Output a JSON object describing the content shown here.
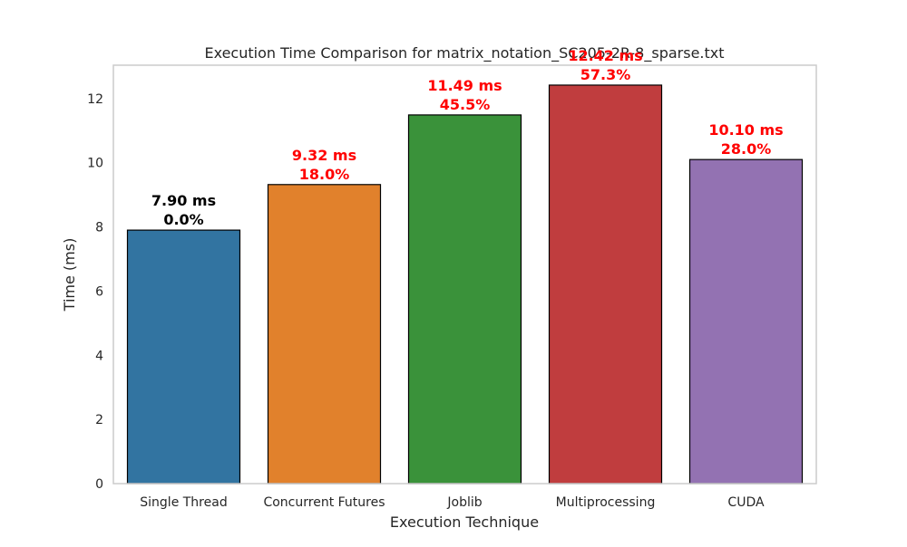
{
  "chart_data": {
    "type": "bar",
    "title": "Execution Time Comparison for matrix_notation_SC205-2R-8_sparse.txt",
    "xlabel": "Execution Technique",
    "ylabel": "Time (ms)",
    "categories": [
      "Single Thread",
      "Concurrent Futures",
      "Joblib",
      "Multiprocessing",
      "CUDA"
    ],
    "values": [
      7.9,
      9.32,
      11.49,
      12.42,
      10.1
    ],
    "value_labels": [
      "7.90 ms",
      "9.32 ms",
      "11.49 ms",
      "12.42 ms",
      "10.10 ms"
    ],
    "percent_labels": [
      "0.0%",
      "18.0%",
      "45.5%",
      "57.3%",
      "28.0%"
    ],
    "bar_colors": [
      "#3274a1",
      "#e1812c",
      "#3a923a",
      "#c03d3e",
      "#9372b2"
    ],
    "annotation_colors": [
      "#000000",
      "#ff0000",
      "#ff0000",
      "#ff0000",
      "#ff0000"
    ],
    "ylim": [
      0,
      13.04
    ],
    "yticks": [
      0,
      2,
      4,
      6,
      8,
      10,
      12
    ],
    "grid": false,
    "legend": false
  }
}
